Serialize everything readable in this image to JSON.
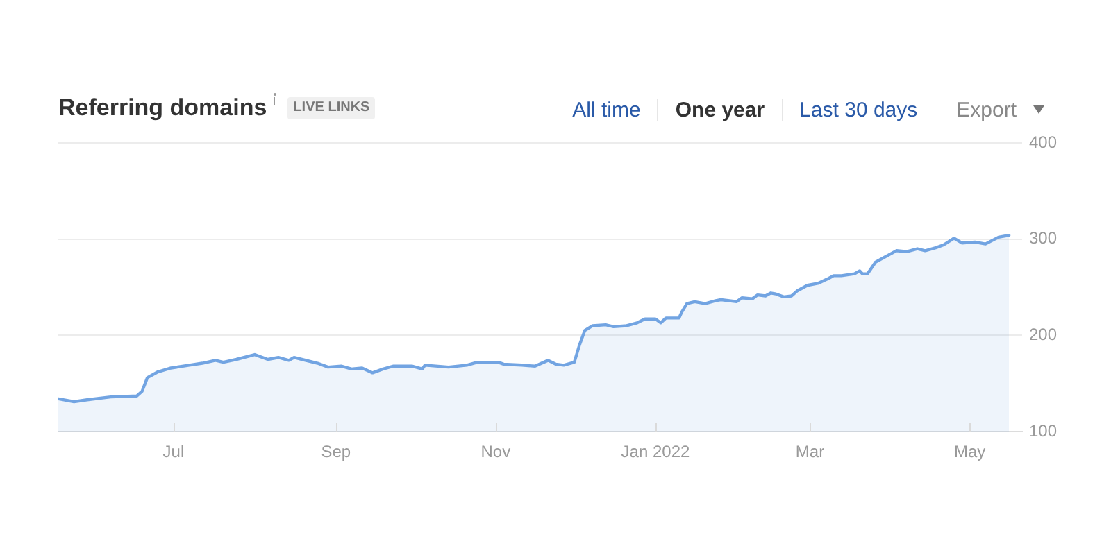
{
  "chart_data": {
    "type": "area",
    "title": "Referring domains",
    "annotations": [
      "LIVE LINKS",
      "All time",
      "One year",
      "Last 30 days",
      "Export"
    ],
    "x": [
      "2021-05-18",
      "2021-05-24",
      "2021-05-29",
      "2021-06-07",
      "2021-06-17",
      "2021-06-19",
      "2021-06-21",
      "2021-06-25",
      "2021-06-30",
      "2021-07-07",
      "2021-07-12",
      "2021-07-17",
      "2021-07-20",
      "2021-07-25",
      "2021-08-01",
      "2021-08-06",
      "2021-08-10",
      "2021-08-14",
      "2021-08-16",
      "2021-08-19",
      "2021-08-25",
      "2021-08-29",
      "2021-09-03",
      "2021-09-07",
      "2021-09-11",
      "2021-09-15",
      "2021-09-19",
      "2021-09-23",
      "2021-09-30",
      "2021-10-04",
      "2021-10-05",
      "2021-10-14",
      "2021-10-21",
      "2021-10-25",
      "2021-11-02",
      "2021-11-04",
      "2021-11-11",
      "2021-11-16",
      "2021-11-21",
      "2021-11-24",
      "2021-11-27",
      "2021-12-01",
      "2021-12-03",
      "2021-12-05",
      "2021-12-08",
      "2021-12-13",
      "2021-12-16",
      "2021-12-21",
      "2021-12-25",
      "2021-12-28",
      "2022-01-01",
      "2022-01-03",
      "2022-01-05",
      "2022-01-10",
      "2022-01-11",
      "2022-01-13",
      "2022-01-16",
      "2022-01-20",
      "2022-01-24",
      "2022-01-26",
      "2022-02-01",
      "2022-02-03",
      "2022-02-07",
      "2022-02-09",
      "2022-02-12",
      "2022-02-14",
      "2022-02-16",
      "2022-02-19",
      "2022-02-22",
      "2022-02-24",
      "2022-02-28",
      "2022-03-04",
      "2022-03-08",
      "2022-03-10",
      "2022-03-13",
      "2022-03-18",
      "2022-03-20",
      "2022-03-21",
      "2022-03-23",
      "2022-03-26",
      "2022-03-30",
      "2022-04-03",
      "2022-04-07",
      "2022-04-11",
      "2022-04-14",
      "2022-04-18",
      "2022-04-21",
      "2022-04-25",
      "2022-04-28",
      "2022-05-03",
      "2022-05-07",
      "2022-05-12",
      "2022-05-16"
    ],
    "series": [
      {
        "color": "#72a4e2",
        "values": [
          134,
          131,
          133,
          136,
          137,
          142,
          156,
          162,
          166,
          169,
          171,
          174,
          172,
          175,
          180,
          175,
          177,
          174,
          177,
          175,
          171,
          167,
          168,
          165,
          166,
          161,
          165,
          168,
          168,
          165,
          169,
          167,
          169,
          172,
          172,
          170,
          169,
          168,
          174,
          170,
          169,
          172,
          190,
          205,
          210,
          211,
          209,
          210,
          213,
          217,
          217,
          213,
          218,
          218,
          224,
          233,
          235,
          233,
          236,
          237,
          235,
          239,
          238,
          242,
          241,
          244,
          243,
          240,
          241,
          246,
          252,
          254,
          259,
          262,
          262,
          264,
          267,
          264,
          264,
          276,
          282,
          288,
          287,
          290,
          288,
          291,
          294,
          301,
          296,
          297,
          295,
          302,
          304
        ]
      }
    ],
    "xlim": [
      "2021-05-18",
      "2022-05-21"
    ],
    "xticks": [
      {
        "value": "2021-07-01",
        "label": "Jul"
      },
      {
        "value": "2021-09-01",
        "label": "Sep"
      },
      {
        "value": "2021-11-01",
        "label": "Nov"
      },
      {
        "value": "2022-01-01",
        "label": "Jan 2022"
      },
      {
        "value": "2022-03-01",
        "label": "Mar"
      },
      {
        "value": "2022-05-01",
        "label": "May"
      }
    ],
    "ylim": [
      100,
      400
    ],
    "yticks": [
      100,
      200,
      300,
      400
    ],
    "grid": "y"
  }
}
